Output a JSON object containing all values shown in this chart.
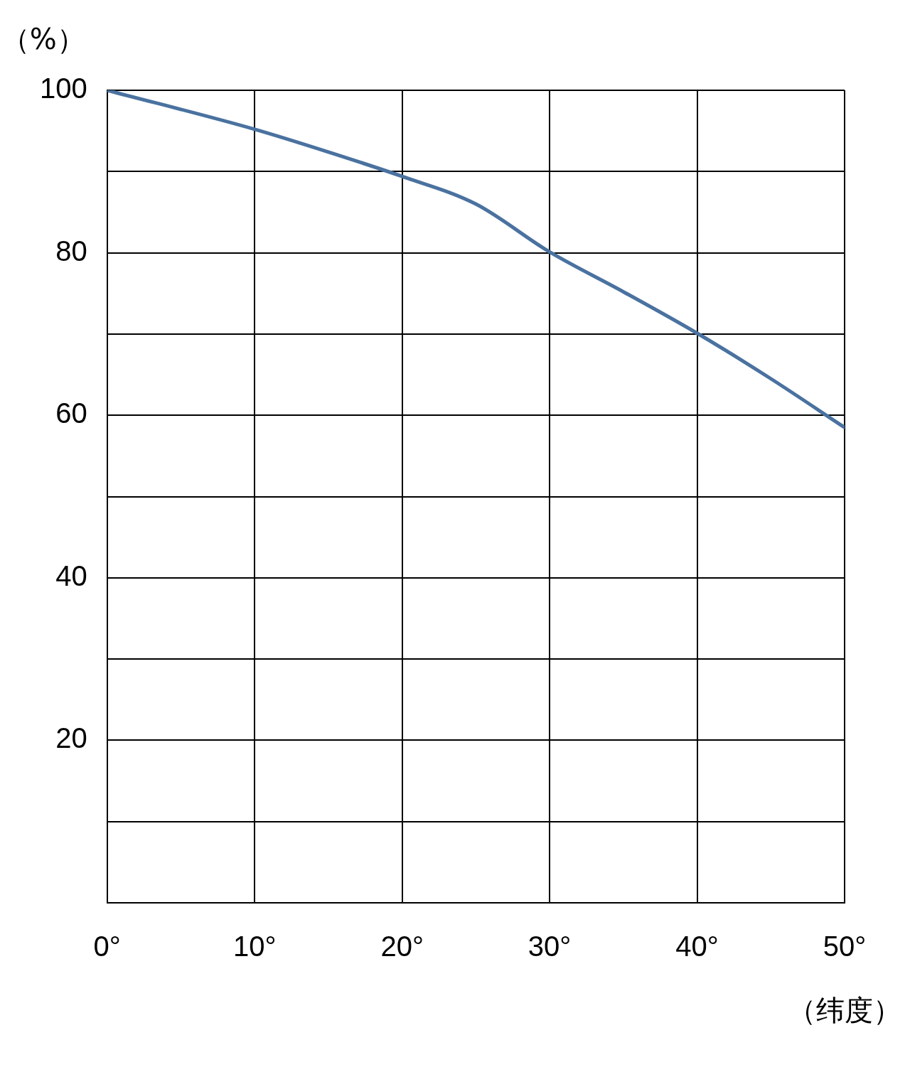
{
  "chart_data": {
    "type": "line",
    "xlabel": "（纬度）",
    "ylabel": "（%）",
    "x": [
      0,
      10,
      15,
      20,
      25,
      30,
      35,
      40,
      45,
      50
    ],
    "series": [
      {
        "color": "#4a72a0",
        "values": [
          100,
          95.2,
          92.4,
          89.4,
          86,
          80.1,
          75.2,
          70.1,
          64.5,
          58.5
        ]
      }
    ],
    "xlim": [
      0,
      50
    ],
    "xticks": [
      {
        "value": 0,
        "label": "0°"
      },
      {
        "value": 10,
        "label": "10°"
      },
      {
        "value": 20,
        "label": "20°"
      },
      {
        "value": 30,
        "label": "30°"
      },
      {
        "value": 40,
        "label": "40°"
      },
      {
        "value": 50,
        "label": "50°"
      }
    ],
    "ylim": [
      0,
      100
    ],
    "yticks": [
      {
        "value": 0,
        "label": null
      },
      {
        "value": 10,
        "label": null
      },
      20,
      {
        "value": 30,
        "label": null
      },
      40,
      {
        "value": 50,
        "label": null
      },
      60,
      {
        "value": 70,
        "label": null
      },
      80,
      {
        "value": 90,
        "label": null
      },
      100
    ],
    "grid": true,
    "legend": false,
    "marker": "none",
    "line_style": "solid"
  }
}
